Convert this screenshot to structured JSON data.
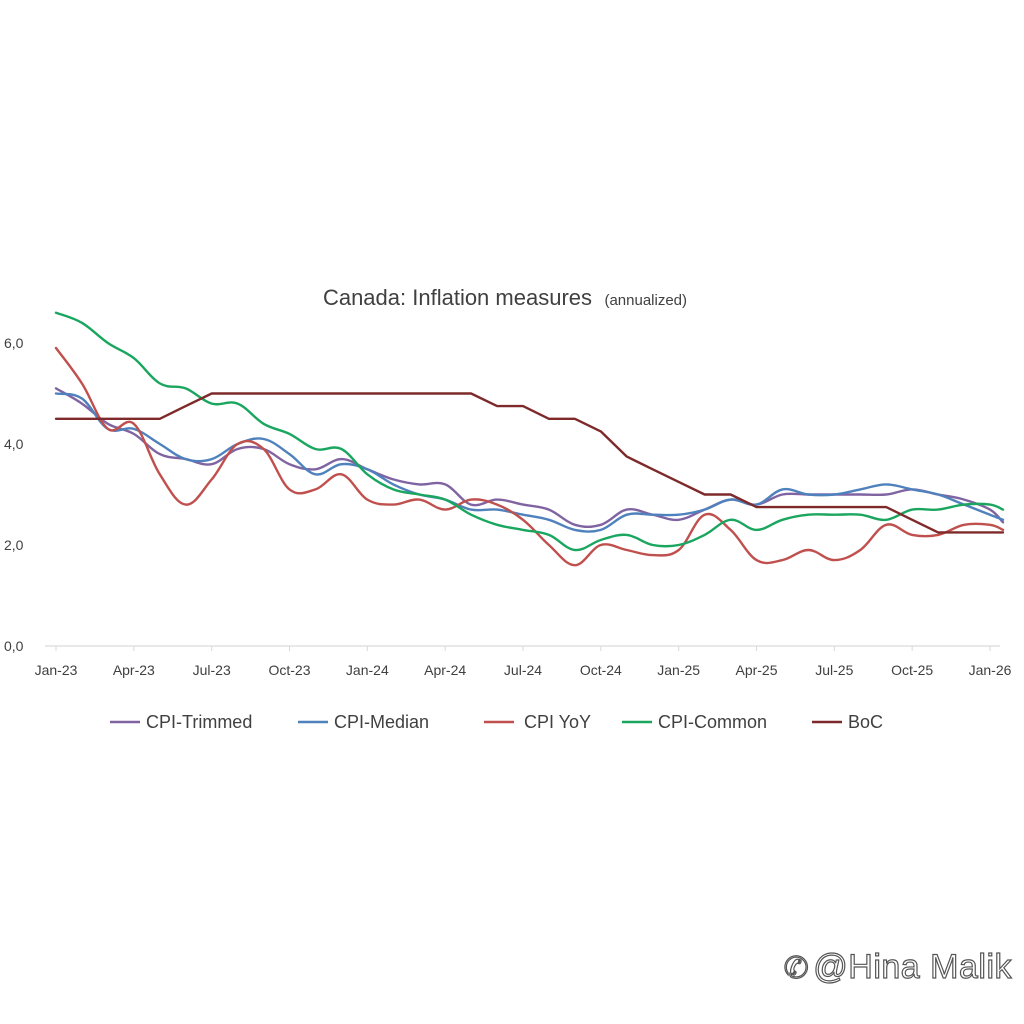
{
  "chart_data": {
    "type": "line",
    "title": "Canada: Inflation measures",
    "subtitle": "(annualized)",
    "xlabel": "",
    "ylabel": "",
    "x_range": [
      "Jan-23",
      "Jan-26"
    ],
    "ylim": [
      0,
      6.0
    ],
    "y_ticks": [
      0,
      2,
      4,
      6
    ],
    "y_tick_labels": [
      "0,0",
      "2,0",
      "4,0",
      "6,0"
    ],
    "x_tick_labels": [
      "Jan-23",
      "Apr-23",
      "Jul-23",
      "Oct-23",
      "Jan-24",
      "Apr-24",
      "Jul-24",
      "Oct-24",
      "Jan-25",
      "Apr-25",
      "Jul-25",
      "Oct-25",
      "Jan-26"
    ],
    "grid": false,
    "legend_position": "bottom",
    "series": [
      {
        "name": "CPI-Trimmed",
        "color": "#8064a2",
        "points": [
          [
            0,
            5.1
          ],
          [
            1,
            4.8
          ],
          [
            2,
            4.4
          ],
          [
            3,
            4.2
          ],
          [
            4,
            3.8
          ],
          [
            5,
            3.7
          ],
          [
            6,
            3.6
          ],
          [
            7,
            3.9
          ],
          [
            8,
            3.9
          ],
          [
            9,
            3.6
          ],
          [
            10,
            3.5
          ],
          [
            11,
            3.7
          ],
          [
            12,
            3.5
          ],
          [
            13,
            3.3
          ],
          [
            14,
            3.2
          ],
          [
            15,
            3.2
          ],
          [
            16,
            2.8
          ],
          [
            17,
            2.9
          ],
          [
            18,
            2.8
          ],
          [
            19,
            2.7
          ],
          [
            20,
            2.4
          ],
          [
            21,
            2.4
          ],
          [
            22,
            2.7
          ],
          [
            23,
            2.6
          ],
          [
            24,
            2.5
          ],
          [
            25,
            2.7
          ],
          [
            26,
            2.9
          ],
          [
            27,
            2.8
          ],
          [
            28,
            3.0
          ],
          [
            29,
            3.0
          ],
          [
            30,
            3.0
          ],
          [
            31,
            3.0
          ],
          [
            32,
            3.0
          ],
          [
            33,
            3.1
          ],
          [
            34,
            3.0
          ],
          [
            35,
            2.9
          ],
          [
            36,
            2.7
          ],
          [
            36.5,
            2.45
          ]
        ]
      },
      {
        "name": "CPI-Median",
        "color": "#4f81bd",
        "points": [
          [
            0,
            5.0
          ],
          [
            1,
            4.9
          ],
          [
            2,
            4.3
          ],
          [
            3,
            4.3
          ],
          [
            4,
            4.0
          ],
          [
            5,
            3.7
          ],
          [
            6,
            3.7
          ],
          [
            7,
            4.0
          ],
          [
            8,
            4.1
          ],
          [
            9,
            3.8
          ],
          [
            10,
            3.4
          ],
          [
            11,
            3.6
          ],
          [
            12,
            3.5
          ],
          [
            13,
            3.2
          ],
          [
            14,
            3.0
          ],
          [
            15,
            2.9
          ],
          [
            16,
            2.7
          ],
          [
            17,
            2.7
          ],
          [
            18,
            2.6
          ],
          [
            19,
            2.5
          ],
          [
            20,
            2.3
          ],
          [
            21,
            2.3
          ],
          [
            22,
            2.6
          ],
          [
            23,
            2.6
          ],
          [
            24,
            2.6
          ],
          [
            25,
            2.7
          ],
          [
            26,
            2.9
          ],
          [
            27,
            2.8
          ],
          [
            28,
            3.1
          ],
          [
            29,
            3.0
          ],
          [
            30,
            3.0
          ],
          [
            31,
            3.1
          ],
          [
            32,
            3.2
          ],
          [
            33,
            3.1
          ],
          [
            34,
            3.0
          ],
          [
            35,
            2.8
          ],
          [
            36,
            2.6
          ],
          [
            36.5,
            2.5
          ]
        ]
      },
      {
        "name": "CPI YoY",
        "color": "#c0504d",
        "points": [
          [
            0,
            5.9
          ],
          [
            1,
            5.2
          ],
          [
            2,
            4.3
          ],
          [
            3,
            4.4
          ],
          [
            4,
            3.4
          ],
          [
            5,
            2.8
          ],
          [
            6,
            3.3
          ],
          [
            7,
            4.0
          ],
          [
            8,
            3.9
          ],
          [
            9,
            3.1
          ],
          [
            10,
            3.1
          ],
          [
            11,
            3.4
          ],
          [
            12,
            2.9
          ],
          [
            13,
            2.8
          ],
          [
            14,
            2.9
          ],
          [
            15,
            2.7
          ],
          [
            16,
            2.9
          ],
          [
            17,
            2.8
          ],
          [
            18,
            2.5
          ],
          [
            19,
            2.0
          ],
          [
            20,
            1.6
          ],
          [
            21,
            2.0
          ],
          [
            22,
            1.9
          ],
          [
            23,
            1.8
          ],
          [
            24,
            1.9
          ],
          [
            25,
            2.6
          ],
          [
            26,
            2.3
          ],
          [
            27,
            1.7
          ],
          [
            28,
            1.7
          ],
          [
            29,
            1.9
          ],
          [
            30,
            1.7
          ],
          [
            31,
            1.9
          ],
          [
            32,
            2.4
          ],
          [
            33,
            2.2
          ],
          [
            34,
            2.2
          ],
          [
            35,
            2.4
          ],
          [
            36,
            2.4
          ],
          [
            36.5,
            2.3
          ]
        ]
      },
      {
        "name": "CPI-Common",
        "color": "#1aa65f",
        "points": [
          [
            0,
            6.6
          ],
          [
            1,
            6.4
          ],
          [
            2,
            6.0
          ],
          [
            3,
            5.7
          ],
          [
            4,
            5.2
          ],
          [
            5,
            5.1
          ],
          [
            6,
            4.8
          ],
          [
            7,
            4.8
          ],
          [
            8,
            4.4
          ],
          [
            9,
            4.2
          ],
          [
            10,
            3.9
          ],
          [
            11,
            3.9
          ],
          [
            12,
            3.4
          ],
          [
            13,
            3.1
          ],
          [
            14,
            3.0
          ],
          [
            15,
            2.9
          ],
          [
            16,
            2.6
          ],
          [
            17,
            2.4
          ],
          [
            18,
            2.3
          ],
          [
            19,
            2.2
          ],
          [
            20,
            1.9
          ],
          [
            21,
            2.1
          ],
          [
            22,
            2.2
          ],
          [
            23,
            2.0
          ],
          [
            24,
            2.0
          ],
          [
            25,
            2.2
          ],
          [
            26,
            2.5
          ],
          [
            27,
            2.3
          ],
          [
            28,
            2.5
          ],
          [
            29,
            2.6
          ],
          [
            30,
            2.6
          ],
          [
            31,
            2.6
          ],
          [
            32,
            2.5
          ],
          [
            33,
            2.7
          ],
          [
            34,
            2.7
          ],
          [
            35,
            2.8
          ],
          [
            36,
            2.8
          ],
          [
            36.5,
            2.7
          ]
        ]
      },
      {
        "name": "BoC",
        "color": "#7f2a2a",
        "points": [
          [
            0,
            4.5
          ],
          [
            1,
            4.5
          ],
          [
            2,
            4.5
          ],
          [
            3,
            4.5
          ],
          [
            4,
            4.5
          ],
          [
            5,
            4.75
          ],
          [
            6,
            5.0
          ],
          [
            7,
            5.0
          ],
          [
            8,
            5.0
          ],
          [
            9,
            5.0
          ],
          [
            10,
            5.0
          ],
          [
            11,
            5.0
          ],
          [
            12,
            5.0
          ],
          [
            13,
            5.0
          ],
          [
            14,
            5.0
          ],
          [
            15,
            5.0
          ],
          [
            16,
            5.0
          ],
          [
            17,
            4.75
          ],
          [
            18,
            4.75
          ],
          [
            19,
            4.5
          ],
          [
            20,
            4.5
          ],
          [
            21,
            4.25
          ],
          [
            22,
            3.75
          ],
          [
            23,
            3.5
          ],
          [
            24,
            3.25
          ],
          [
            25,
            3.0
          ],
          [
            26,
            3.0
          ],
          [
            27,
            2.75
          ],
          [
            28,
            2.75
          ],
          [
            29,
            2.75
          ],
          [
            30,
            2.75
          ],
          [
            31,
            2.75
          ],
          [
            32,
            2.75
          ],
          [
            33,
            2.5
          ],
          [
            34,
            2.25
          ],
          [
            35,
            2.25
          ],
          [
            36,
            2.25
          ],
          [
            36.5,
            2.25
          ]
        ]
      }
    ]
  },
  "watermark": {
    "text": "@Hina Malik",
    "icon": "chat-icon"
  }
}
